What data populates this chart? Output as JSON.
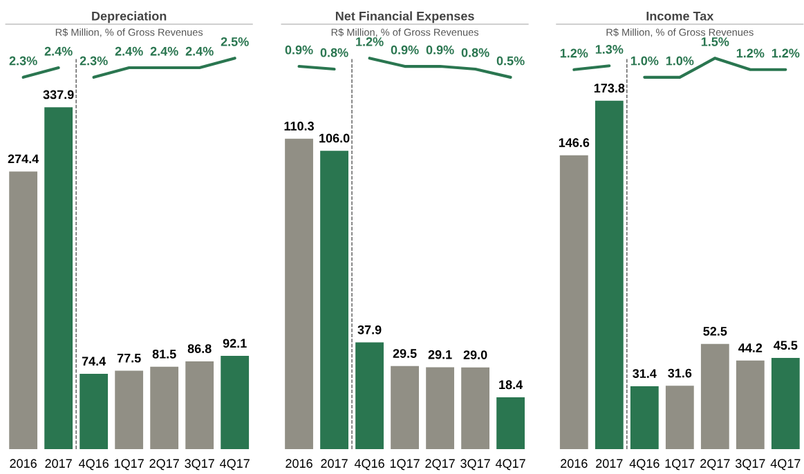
{
  "chart_data": [
    {
      "type": "bar",
      "title": "Depreciation",
      "subtitle": "R$ Million, % of Gross Revenues",
      "categories": [
        "2016",
        "2017",
        "4Q16",
        "1Q17",
        "2Q17",
        "3Q17",
        "4Q17"
      ],
      "series": [
        {
          "values": [
            274.4,
            337.9,
            74.4,
            77.5,
            81.5,
            86.8,
            92.1
          ],
          "colors": [
            "#918f85",
            "#2a7650",
            "#2a7650",
            "#918f85",
            "#918f85",
            "#918f85",
            "#2a7650"
          ]
        },
        {
          "type": "line",
          "axis": "y2",
          "color": "#2a7650",
          "values": [
            2.3,
            2.4,
            null,
            null,
            null,
            null,
            null
          ],
          "value_labels": [
            "2.3%",
            "2.4%",
            null,
            null,
            null,
            null,
            null
          ]
        },
        {
          "type": "line",
          "axis": "y2",
          "color": "#2a7650",
          "values": [
            null,
            null,
            2.3,
            2.4,
            2.4,
            2.4,
            2.5
          ],
          "value_labels": [
            null,
            null,
            "2.3%",
            "2.4%",
            "2.4%",
            "2.4%",
            "2.5%"
          ]
        }
      ],
      "ylim": [
        0,
        420
      ],
      "tick_labels": "x",
      "data_labels": true
    },
    {
      "type": "bar",
      "title": "Net Financial Expenses",
      "subtitle": "R$ Million, % of Gross Revenues",
      "categories": [
        "2016",
        "2017",
        "4Q16",
        "1Q17",
        "2Q17",
        "3Q17",
        "4Q17"
      ],
      "series": [
        {
          "values": [
            110.3,
            106.0,
            37.9,
            29.5,
            29.1,
            29.0,
            18.4
          ],
          "value_labels": [
            "110.3",
            "106.0",
            "37.9",
            "29.5",
            "29.1",
            "29.0",
            "18.4"
          ],
          "colors": [
            "#918f85",
            "#2a7650",
            "#2a7650",
            "#918f85",
            "#918f85",
            "#918f85",
            "#2a7650"
          ]
        },
        {
          "type": "line",
          "axis": "y2",
          "color": "#2a7650",
          "values": [
            0.9,
            0.8,
            null,
            null,
            null,
            null,
            null
          ],
          "value_labels": [
            "0.9%",
            "0.8%",
            null,
            null,
            null,
            null,
            null
          ]
        },
        {
          "type": "line",
          "axis": "y2",
          "color": "#2a7650",
          "values": [
            null,
            null,
            1.2,
            0.9,
            0.9,
            0.8,
            0.5
          ],
          "value_labels": [
            null,
            null,
            "1.2%",
            "0.9%",
            "0.9%",
            "0.8%",
            "0.5%"
          ]
        }
      ],
      "ylim": [
        0,
        151
      ],
      "tick_labels": "x",
      "data_labels": true
    },
    {
      "type": "bar",
      "title": "Income Tax",
      "subtitle": "R$ Million, % of Gross Revenues",
      "categories": [
        "2016",
        "2017",
        "4Q16",
        "1Q17",
        "2Q17",
        "3Q17",
        "4Q17"
      ],
      "series": [
        {
          "values": [
            146.6,
            173.8,
            31.4,
            31.6,
            52.5,
            44.2,
            45.5
          ],
          "colors": [
            "#918f85",
            "#2a7650",
            "#2a7650",
            "#918f85",
            "#918f85",
            "#918f85",
            "#2a7650"
          ]
        },
        {
          "type": "line",
          "axis": "y2",
          "color": "#2a7650",
          "values": [
            1.2,
            1.3,
            null,
            null,
            null,
            null,
            null
          ],
          "value_labels": [
            "1.2%",
            "1.3%",
            null,
            null,
            null,
            null,
            null
          ]
        },
        {
          "type": "line",
          "axis": "y2",
          "color": "#2a7650",
          "values": [
            null,
            null,
            1.0,
            1.0,
            1.5,
            1.2,
            1.2
          ],
          "value_labels": [
            null,
            null,
            "1.0%",
            "1.0%",
            "1.5%",
            "1.2%",
            "1.2%"
          ]
        }
      ],
      "ylim": [
        0,
        212
      ],
      "tick_labels": "x",
      "data_labels": true
    }
  ]
}
